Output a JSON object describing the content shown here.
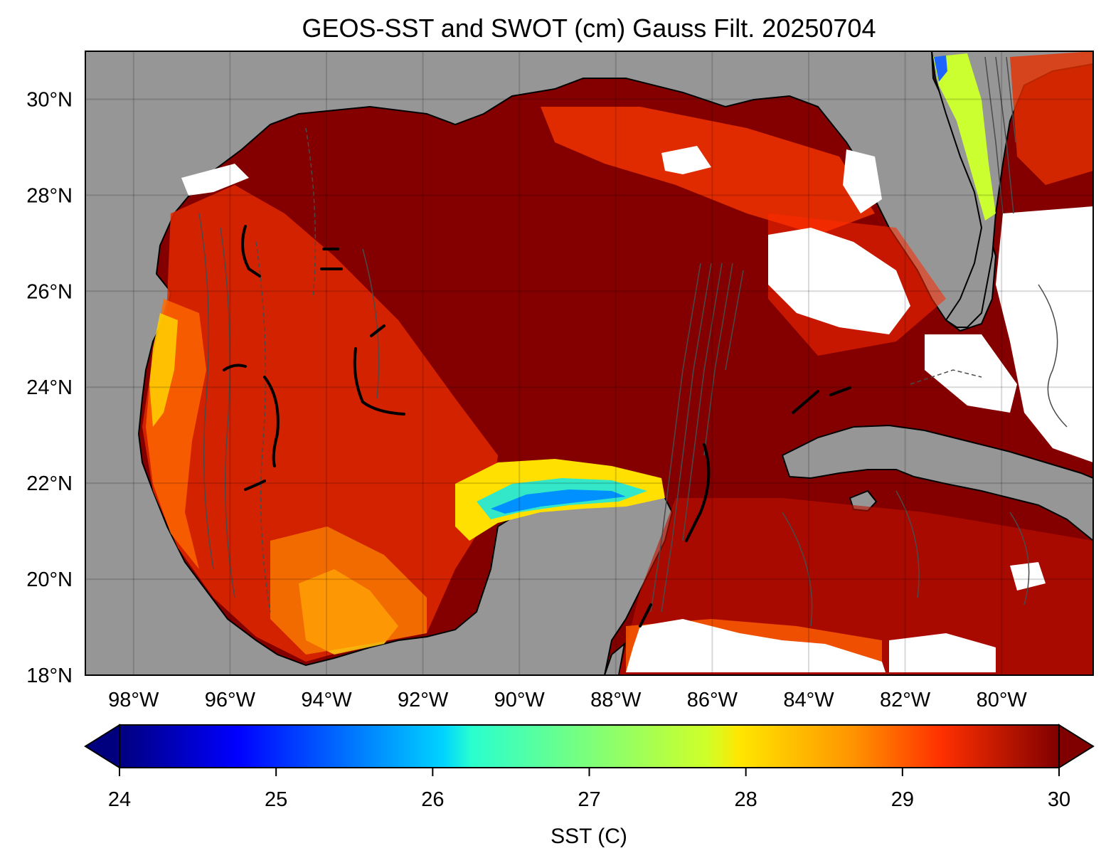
{
  "title": "GEOS-SST  and SWOT (cm) Gauss Filt. 20250704",
  "map": {
    "lon_range": [
      -99,
      -78.1
    ],
    "lat_range": [
      18,
      31
    ],
    "lat_ticks": [
      {
        "value": 30,
        "label": "30°N"
      },
      {
        "value": 28,
        "label": "28°N"
      },
      {
        "value": 26,
        "label": "26°N"
      },
      {
        "value": 24,
        "label": "24°N"
      },
      {
        "value": 22,
        "label": "22°N"
      },
      {
        "value": 20,
        "label": "20°N"
      },
      {
        "value": 18,
        "label": "18°N"
      }
    ],
    "lon_ticks": [
      {
        "value": -98,
        "label": "98°W"
      },
      {
        "value": -96,
        "label": "96°W"
      },
      {
        "value": -94,
        "label": "94°W"
      },
      {
        "value": -92,
        "label": "92°W"
      },
      {
        "value": -90,
        "label": "90°W"
      },
      {
        "value": -88,
        "label": "88°W"
      },
      {
        "value": -86,
        "label": "86°W"
      },
      {
        "value": -84,
        "label": "84°W"
      },
      {
        "value": -82,
        "label": "82°W"
      },
      {
        "value": -80,
        "label": "80°W"
      }
    ],
    "land_color": "#969696",
    "gridlines": true
  },
  "colorbar": {
    "label": "SST (C)",
    "min": 24,
    "max": 30,
    "ticks": [
      "24",
      "25",
      "26",
      "27",
      "28",
      "29",
      "30"
    ],
    "colormap": "jet",
    "extend": "both"
  }
}
